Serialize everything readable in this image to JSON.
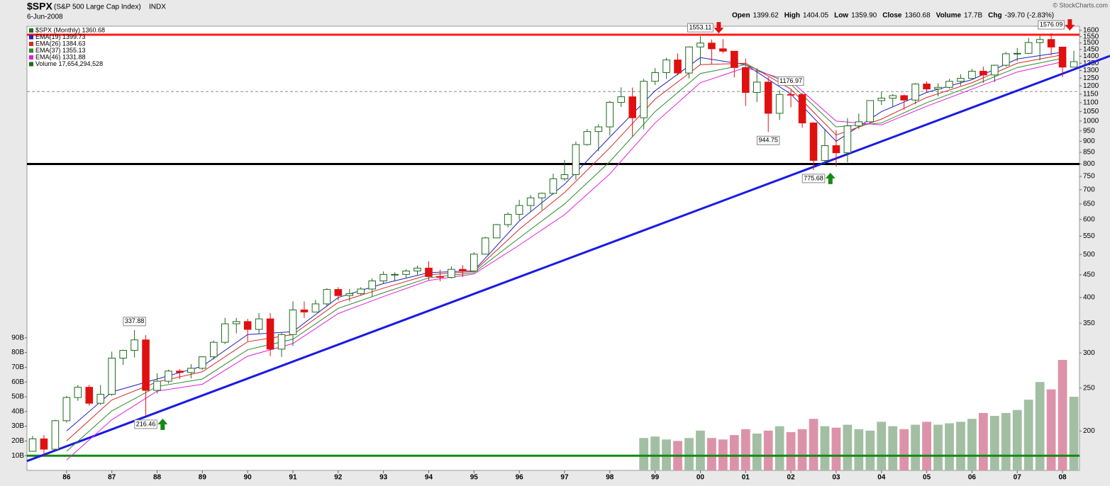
{
  "header": {
    "symbol": "$SPX",
    "name": "(S&P 500 Large Cap Index)",
    "exchange": "INDX",
    "date": "6-Jun-2008",
    "credit": "© StockCharts.com",
    "quote": [
      {
        "label": "Open",
        "value": "1399.62"
      },
      {
        "label": "High",
        "value": "1404.05"
      },
      {
        "label": "Low",
        "value": "1359.90"
      },
      {
        "label": "Close",
        "value": "1360.68"
      },
      {
        "label": "Volume",
        "value": "17.7B"
      },
      {
        "label": "Chg",
        "value": "-39.70 (-2.83%)"
      }
    ]
  },
  "chart_data": {
    "type": "candlestick",
    "log_scale": true,
    "legend": [
      "$SPX (Monthly) 1360.68",
      "EMA(19) 1399.73",
      "EMA(26) 1384.63",
      "EMA(37) 1355.13",
      "EMA(46) 1331.88",
      "Volume 17,654,294,528"
    ],
    "up_color": "#1e6b1e",
    "down_color": "#e01010",
    "open": [
      180,
      192,
      182,
      211,
      238,
      251,
      231,
      242,
      292,
      304,
      321,
      247,
      259,
      273,
      271,
      277,
      294,
      317,
      349,
      353,
      339,
      358,
      306,
      330,
      375,
      371,
      387,
      417,
      404,
      408,
      418,
      436,
      451,
      451,
      459,
      466,
      446,
      444,
      463,
      459,
      501,
      545,
      584,
      616,
      645,
      671,
      687,
      741,
      757,
      885,
      947,
      970,
      1102,
      1134,
      1017,
      1229,
      1286,
      1373,
      1283,
      1469,
      1499,
      1455,
      1437,
      1320,
      1160,
      1224,
      1041,
      1148,
      1147,
      990,
      815,
      880,
      848,
      975,
      996,
      1112,
      1126,
      1141,
      1115,
      1212,
      1181,
      1191,
      1229,
      1248,
      1295,
      1270,
      1336,
      1418,
      1421,
      1503,
      1527,
      1468,
      1323
    ],
    "high": [
      195,
      196,
      212,
      240,
      254,
      254,
      254,
      302,
      305,
      337.88,
      329,
      270,
      275,
      276,
      283,
      295,
      320,
      360,
      360,
      358,
      369,
      369,
      333,
      392,
      392,
      395,
      420,
      422,
      418,
      422,
      442,
      458,
      456,
      463,
      472,
      483,
      462,
      470,
      473,
      506,
      548,
      586,
      622,
      664,
      681,
      690,
      761,
      817,
      899,
      960,
      983,
      1110,
      1191,
      1190,
      1244,
      1316,
      1389,
      1420,
      1473,
      1553.11,
      1527,
      1530,
      1437,
      1383,
      1316,
      1256,
      1173,
      1176.97,
      1157,
      994,
      955,
      954,
      1015,
      1040,
      1112,
      1163,
      1150,
      1147,
      1217,
      1229,
      1217,
      1245,
      1275,
      1311,
      1326,
      1340,
      1431,
      1461,
      1540,
      1555,
      1576.09,
      1471,
      1440
    ],
    "low": [
      180,
      175,
      180,
      209,
      234,
      228,
      229,
      240,
      282,
      293,
      216.46,
      243,
      256,
      262,
      263,
      275,
      290,
      314,
      332,
      319,
      331,
      295,
      294,
      311,
      360,
      371,
      381,
      394,
      392,
      405,
      402,
      429,
      437,
      441,
      450,
      438,
      435,
      441,
      445,
      457,
      501,
      545,
      576,
      598,
      625,
      630,
      683,
      733,
      737,
      880,
      855,
      927,
      1076,
      923,
      957,
      1205,
      1244,
      1268,
      1247,
      1339,
      1344,
      1422,
      1254,
      1081,
      1103,
      944.75,
      1005,
      1074,
      966,
      775.68,
      800,
      789,
      807,
      960,
      990,
      1087,
      1076,
      1060,
      1090,
      1164,
      1137,
      1183,
      1201,
      1245,
      1219,
      1224,
      1325,
      1363,
      1416,
      1370,
      1406,
      1256,
      1325
    ],
    "close": [
      192,
      182,
      211,
      238,
      251,
      231,
      242,
      292,
      304,
      321,
      247,
      259,
      273,
      271,
      277,
      294,
      317,
      349,
      353,
      339,
      358,
      306,
      330,
      375,
      371,
      387,
      417,
      404,
      408,
      418,
      436,
      451,
      451,
      459,
      466,
      446,
      444,
      463,
      459,
      501,
      545,
      584,
      616,
      645,
      671,
      687,
      741,
      757,
      885,
      947,
      970,
      1102,
      1134,
      1017,
      1229,
      1286,
      1373,
      1283,
      1469,
      1499,
      1455,
      1437,
      1320,
      1160,
      1224,
      1041,
      1148,
      1147,
      990,
      815,
      880,
      848,
      975,
      996,
      1112,
      1126,
      1141,
      1115,
      1212,
      1181,
      1191,
      1229,
      1248,
      1295,
      1270,
      1336,
      1418,
      1421,
      1503,
      1527,
      1468,
      1323,
      1361
    ],
    "volume": [
      null,
      null,
      null,
      null,
      null,
      null,
      null,
      null,
      null,
      null,
      null,
      null,
      null,
      null,
      null,
      null,
      null,
      null,
      null,
      null,
      null,
      null,
      null,
      null,
      null,
      null,
      null,
      null,
      null,
      null,
      null,
      null,
      null,
      null,
      null,
      null,
      null,
      null,
      null,
      null,
      null,
      null,
      null,
      null,
      null,
      null,
      null,
      null,
      null,
      null,
      null,
      null,
      null,
      null,
      22,
      23,
      21,
      20,
      22,
      27,
      22,
      21,
      24,
      28,
      25,
      27,
      30,
      26,
      28,
      35,
      30,
      29,
      31,
      28,
      27,
      33,
      30,
      28,
      31,
      33,
      31,
      32,
      33,
      35,
      39,
      37,
      39,
      41,
      48,
      60,
      55,
      75,
      50
    ],
    "volume_up_color": "#a3bfa3",
    "volume_down_color": "#dc93aa",
    "years": [
      "86",
      "87",
      "88",
      "89",
      "90",
      "91",
      "92",
      "93",
      "94",
      "95",
      "96",
      "97",
      "98",
      "99",
      "00",
      "01",
      "02",
      "03",
      "04",
      "05",
      "06",
      "07",
      "08"
    ],
    "ema": [
      {
        "color": "#1f1fbf",
        "values": [
          200,
          245,
          262,
          280,
          330,
          335,
          400,
          430,
          455,
          460,
          595,
          720,
          920,
          1170,
          1390,
          1340,
          1150,
          900,
          1050,
          1160,
          1240,
          1380,
          1430
        ]
      },
      {
        "color": "#d62728",
        "values": [
          190,
          235,
          258,
          272,
          318,
          330,
          390,
          420,
          450,
          458,
          570,
          690,
          870,
          1120,
          1340,
          1350,
          1180,
          930,
          1010,
          1130,
          1220,
          1350,
          1410
        ]
      },
      {
        "color": "#2d8a2d",
        "values": [
          180,
          222,
          252,
          262,
          305,
          322,
          378,
          410,
          443,
          455,
          545,
          650,
          810,
          1050,
          1280,
          1340,
          1210,
          970,
          990,
          1100,
          1200,
          1320,
          1385
        ]
      },
      {
        "color": "#e01ee0",
        "values": [
          172,
          212,
          246,
          255,
          295,
          315,
          368,
          402,
          437,
          452,
          525,
          615,
          760,
          990,
          1220,
          1320,
          1230,
          1000,
          980,
          1080,
          1180,
          1290,
          1360
        ]
      }
    ],
    "ylim": [
      163,
      1636
    ],
    "yticks": [
      200,
      250,
      300,
      350,
      400,
      450,
      500,
      550,
      600,
      650,
      700,
      750,
      800,
      850,
      900,
      950,
      1000,
      1050,
      1100,
      1150,
      1200,
      1250,
      1300,
      1350,
      1400,
      1450,
      1500,
      1550,
      1600
    ],
    "vlim": [
      0,
      100
    ],
    "vticks": [
      {
        "value": 10,
        "label": "10B"
      },
      {
        "value": 20,
        "label": "20B"
      },
      {
        "value": 30,
        "label": "30B"
      },
      {
        "value": 40,
        "label": "40B"
      },
      {
        "value": 50,
        "label": "50B"
      },
      {
        "value": 60,
        "label": "60B"
      },
      {
        "value": 70,
        "label": "70B"
      },
      {
        "value": 80,
        "label": "80B"
      },
      {
        "value": 90,
        "label": "90B"
      }
    ],
    "levels": [
      {
        "value": 1565,
        "color": "#ff1a1a"
      },
      {
        "value": 1165,
        "color": "#888888",
        "dash": true
      },
      {
        "value": 800,
        "color": "#000000"
      },
      {
        "value": 10,
        "color": "#138a13",
        "axis": "volume"
      }
    ],
    "trendline": {
      "color": "#1a1ae6",
      "values": [
        173,
        1307
      ]
    },
    "annotations": [
      {
        "index": 9,
        "value": 337.88
      },
      {
        "index": 10,
        "value": 216.46,
        "arrow": "#138a13"
      },
      {
        "index": 59,
        "value": 1553.11,
        "arrow": "#e01010"
      },
      {
        "index": 65,
        "value": 944.75
      },
      {
        "index": 67,
        "value": 1176.97
      },
      {
        "index": 69,
        "value": 775.68,
        "arrow": "#138a13"
      },
      {
        "index": 90,
        "value": 1576.09,
        "arrow": "#e01010"
      }
    ]
  }
}
